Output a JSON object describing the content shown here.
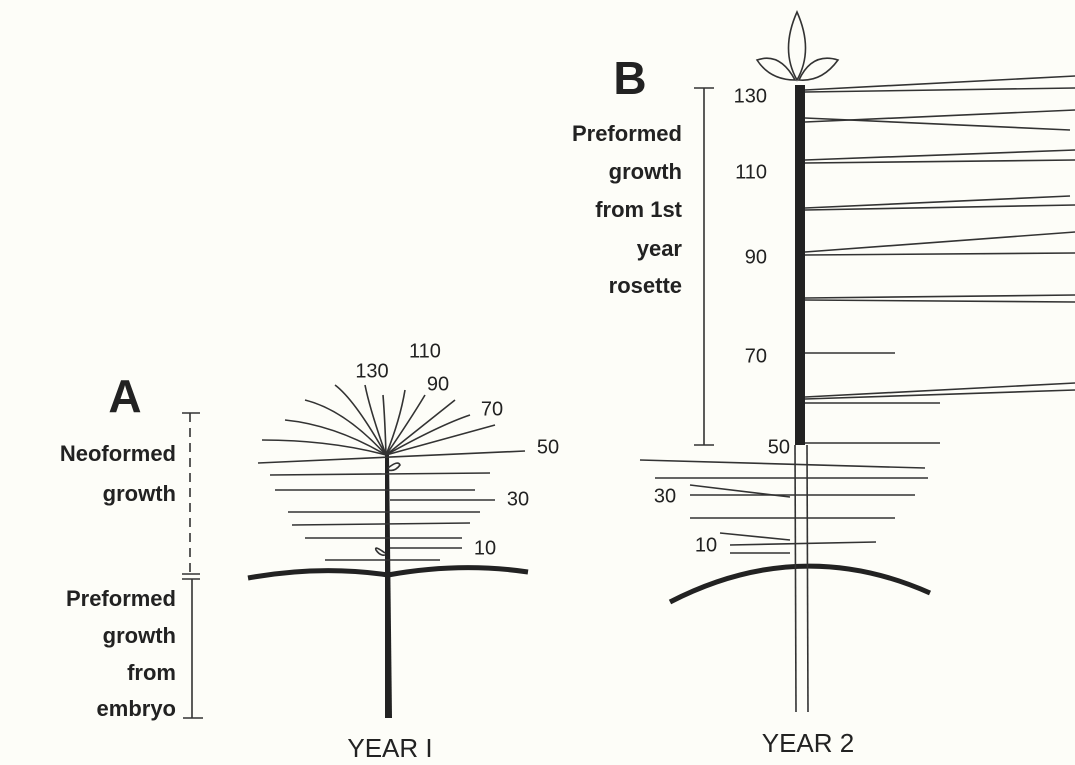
{
  "panel_a": {
    "letter": "A",
    "caption": "YEAR I",
    "neoformed_label": [
      "Neoformed",
      "growth"
    ],
    "preformed_label": [
      "Preformed",
      "growth",
      "from",
      "embryo"
    ],
    "leaf_labels": [
      "130",
      "110",
      "90",
      "70",
      "50",
      "30",
      "10"
    ]
  },
  "panel_b": {
    "letter": "B",
    "caption": "YEAR 2",
    "preformed_label": [
      "Preformed",
      "growth",
      "from 1st",
      "year",
      "rosette"
    ],
    "leaf_labels": [
      "130",
      "110",
      "90",
      "70",
      "50",
      "30",
      "10"
    ]
  }
}
